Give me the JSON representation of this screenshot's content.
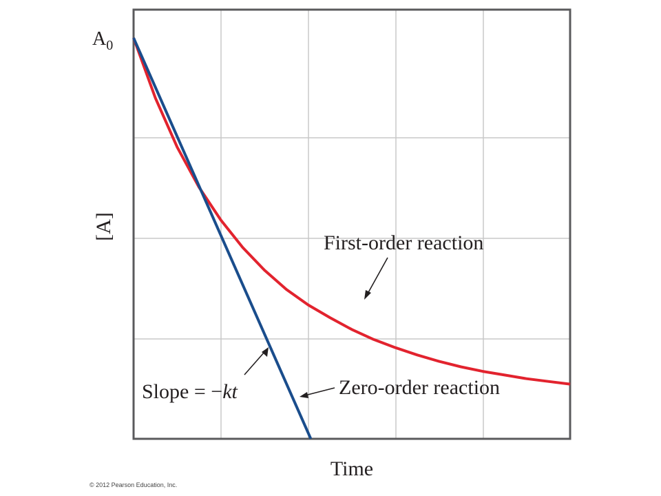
{
  "chart_data": {
    "type": "line",
    "title": "",
    "xlabel": "Time",
    "ylabel": "[A]",
    "y_tick_label": "A",
    "y_tick_label_subscript": "0",
    "xlim": [
      0,
      5
    ],
    "ylim": [
      0,
      4.4
    ],
    "grid": true,
    "series": [
      {
        "name": "First-order reaction",
        "color": "#e2232e",
        "x": [
          0,
          0.25,
          0.5,
          0.75,
          1.0,
          1.25,
          1.5,
          1.75,
          2.0,
          2.25,
          2.5,
          2.75,
          3.0,
          3.25,
          3.5,
          3.75,
          4.0,
          4.25,
          4.5,
          4.75,
          5.0
        ],
        "y": [
          4.4,
          3.74,
          3.2,
          2.76,
          2.4,
          2.1,
          1.85,
          1.64,
          1.47,
          1.33,
          1.2,
          1.09,
          1.0,
          0.92,
          0.85,
          0.79,
          0.74,
          0.7,
          0.66,
          0.63,
          0.6
        ]
      },
      {
        "name": "Zero-order reaction",
        "color": "#1a4d8c",
        "x": [
          0,
          2.03
        ],
        "y": [
          4.4,
          0
        ]
      }
    ],
    "annotations": {
      "first_order": "First-order reaction",
      "zero_order": "Zero-order reaction",
      "slope_prefix": "Slope = −",
      "slope_term": "kt"
    }
  },
  "footer": {
    "credit": "© 2012 Pearson Education, Inc."
  }
}
